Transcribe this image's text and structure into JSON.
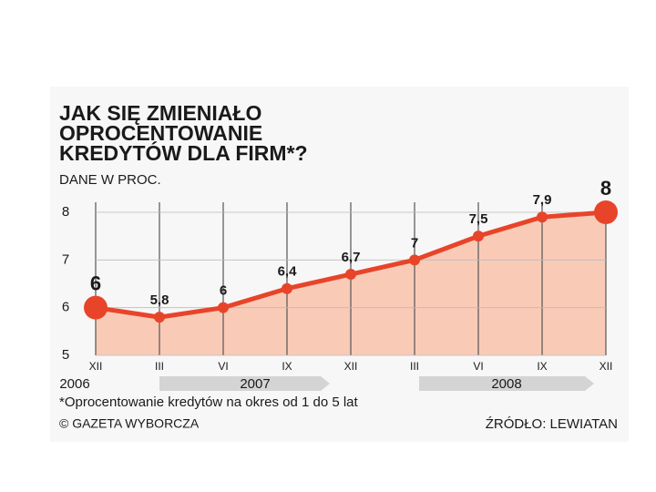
{
  "chart_data": {
    "type": "line",
    "title": [
      "JAK SIĘ ZMIENIAŁO",
      "OPROCENTOWANIE",
      "KREDYTÓW DLA FIRM*?"
    ],
    "subtitle": "DANE W PROC.",
    "categories": [
      "XII",
      "III",
      "VI",
      "IX",
      "XII",
      "III",
      "VI",
      "IX",
      "XII"
    ],
    "years": [
      "2006",
      "2007",
      "2008"
    ],
    "series": [
      {
        "color": "#e8442a",
        "fill": "#f9cbb7",
        "values": [
          6,
          5.8,
          6,
          6.4,
          6.7,
          7,
          7.5,
          7.9,
          8
        ],
        "value_labels": [
          "6",
          "5,8",
          "6",
          "6,4",
          "6,7",
          "7",
          "7,5",
          "7,9",
          "8"
        ]
      }
    ],
    "ylim": [
      5,
      8
    ],
    "yticks": [
      5,
      6,
      7,
      8
    ],
    "grid": true,
    "footnote": "*Oprocentowanie kredytów na okres od 1 do 5 lat",
    "credit": "© GAZETA WYBORCZA",
    "source": "ŹRÓDŁO: LEWIATAN"
  }
}
